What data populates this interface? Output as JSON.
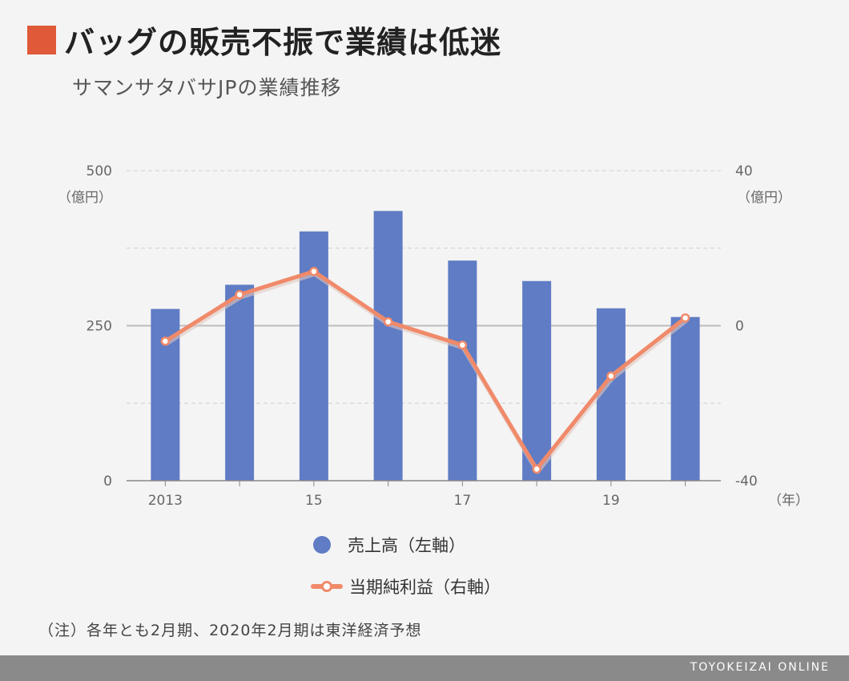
{
  "header": {
    "title": "バッグの販売不振で業績は低迷",
    "subtitle": "サマンサタバサJPの業績推移",
    "accent_color": "#e05a3a"
  },
  "chart_data": {
    "type": "bar",
    "title": "バッグの販売不振で業績は低迷",
    "subtitle": "サマンサタバサJPの業績推移",
    "x_tick_labels": [
      "2013",
      "",
      "15",
      "",
      "17",
      "",
      "19",
      ""
    ],
    "xunit": "（年）",
    "series": [
      {
        "name": "売上高（左軸）",
        "type": "bar",
        "axis": "left",
        "color": "#5f7cc4",
        "values": [
          277,
          316,
          402,
          435,
          355,
          322,
          278,
          264
        ]
      },
      {
        "name": "当期純利益（右軸）",
        "type": "line",
        "axis": "right",
        "color": "#f08a6a",
        "values": [
          -4,
          8,
          14,
          1,
          -5,
          -37,
          -13,
          2
        ]
      }
    ],
    "left_axis": {
      "ticks": [
        "500",
        "250",
        "0"
      ],
      "range": [
        0,
        500
      ],
      "unit": "（億円）"
    },
    "right_axis": {
      "ticks": [
        "40",
        "0",
        "-40"
      ],
      "range": [
        -40,
        40
      ],
      "unit": "（億円）"
    },
    "grid": true
  },
  "legend": {
    "bar_label": "売上高（左軸）",
    "line_label": "当期純利益（右軸）"
  },
  "note": "（注）各年とも2月期、2020年2月期は東洋経済予想",
  "footer": {
    "brand": "TOYOKEIZAI ONLINE"
  }
}
